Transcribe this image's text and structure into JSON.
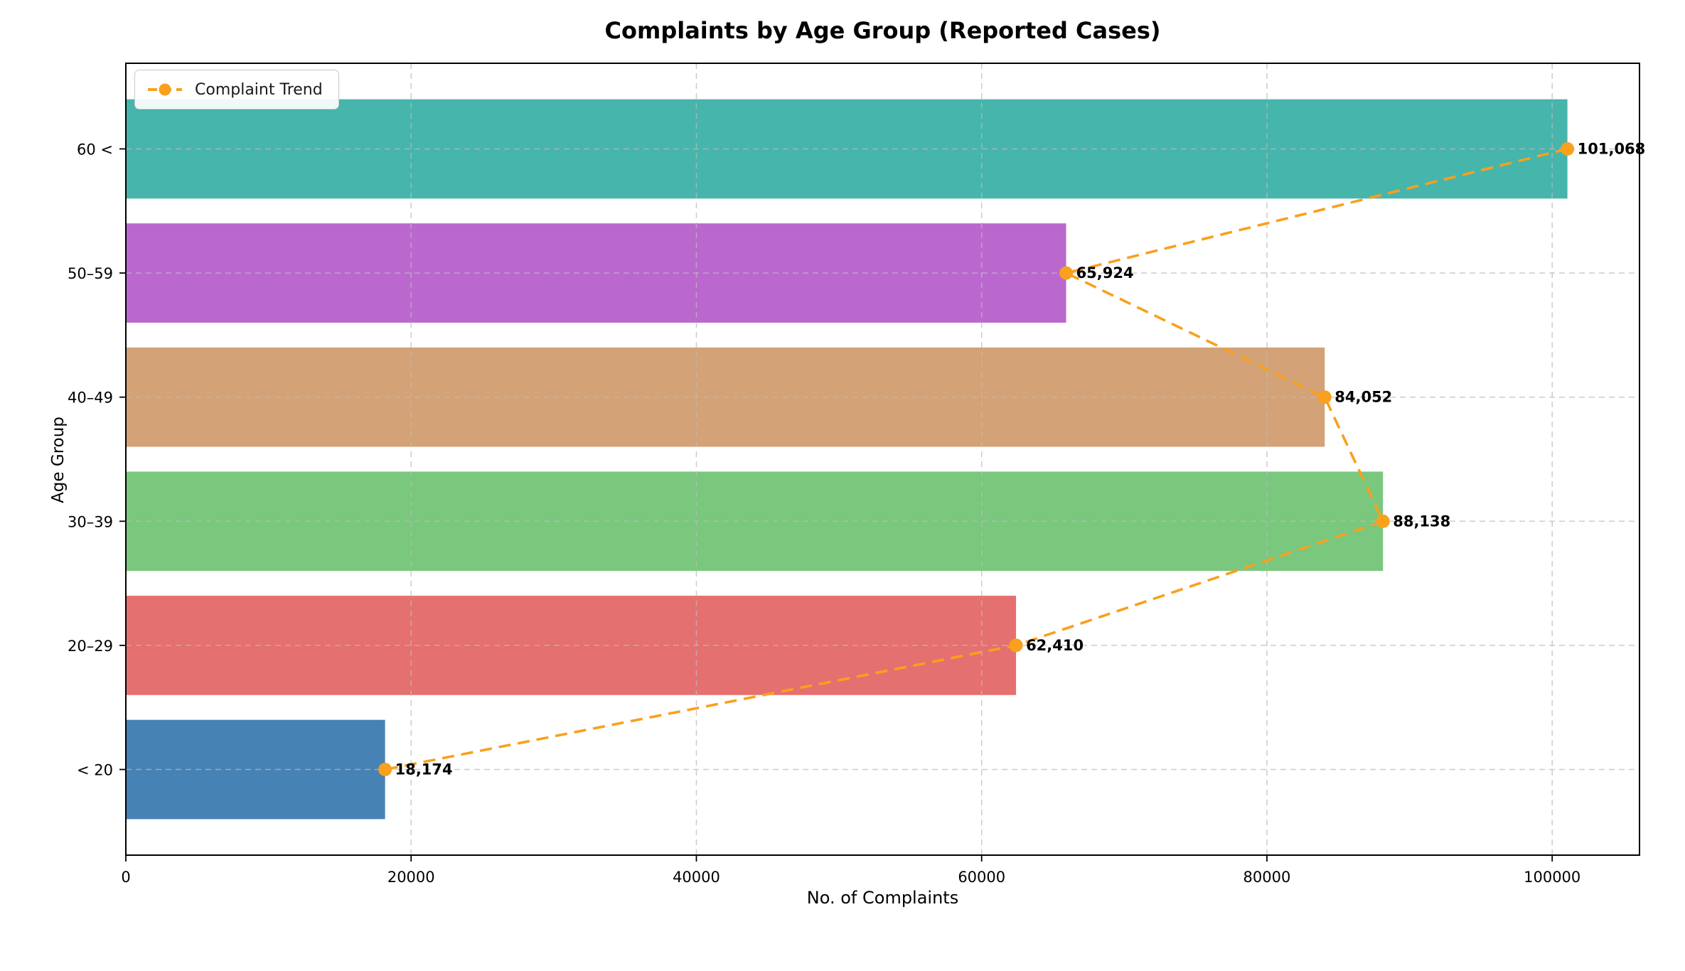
{
  "chart_data": {
    "type": "bar",
    "orientation": "horizontal",
    "title": "Complaints by Age Group (Reported Cases)",
    "xlabel": "No. of Complaints",
    "ylabel": "Age Group",
    "legend": {
      "position": "upper-left",
      "label": "Complaint Trend",
      "line_color": "#f9a01e",
      "linestyle": "dashed",
      "marker": "circle"
    },
    "categories": [
      "60 <",
      "50–59",
      "40–49",
      "30–39",
      "20–29",
      "< 20"
    ],
    "series": [
      {
        "name": "Reported Cases",
        "type": "bar",
        "values": [
          101068,
          65924,
          84052,
          88138,
          62410,
          18174
        ],
        "colors": [
          "#46b5ac",
          "#ba68ce",
          "#d3a276",
          "#7ac77e",
          "#e57070",
          "#4682b4"
        ]
      },
      {
        "name": "Complaint Trend",
        "type": "line",
        "values": [
          101068,
          65924,
          84052,
          88138,
          62410,
          18174
        ],
        "color": "#f9a01e",
        "point_labels": [
          "101,068",
          "65,924",
          "84,052",
          "88,138",
          "62,410",
          "18,174"
        ]
      }
    ],
    "xticks": [
      0,
      20000,
      40000,
      60000,
      80000,
      100000
    ],
    "xtick_labels": [
      "0",
      "20000",
      "40000",
      "60000",
      "80000",
      "100000"
    ],
    "xlim": [
      0,
      106121
    ],
    "grid": {
      "visible": true,
      "linestyle": "dashed",
      "color": "#bbbbbb"
    },
    "background": "#ffffff",
    "text_color": "#000000",
    "bar_value_label_style": "bold"
  }
}
